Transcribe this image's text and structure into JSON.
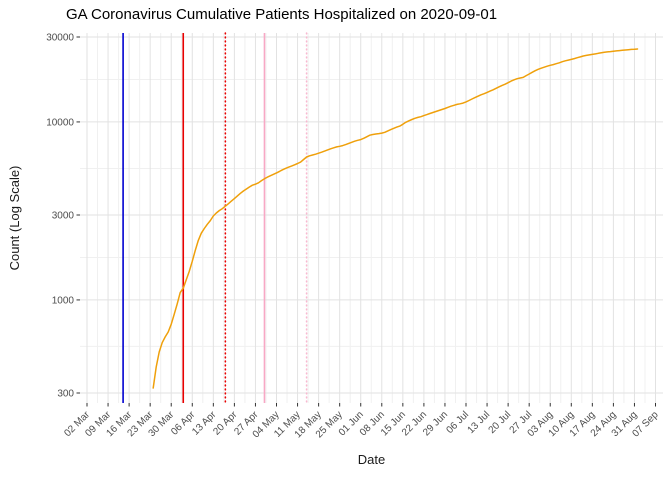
{
  "chart_data": {
    "type": "line",
    "title": "GA Coronavirus Cumulative Patients Hospitalized on 2020-09-01",
    "xlabel": "Date",
    "ylabel": "Count (Log Scale)",
    "y_scale": "log10",
    "grid": true,
    "legend": false,
    "x_start_date": "2020-03-02",
    "x_tick_interval_days": 7,
    "x_tick_labels": [
      "02 Mar",
      "09 Mar",
      "16 Mar",
      "23 Mar",
      "30 Mar",
      "06 Apr",
      "13 Apr",
      "20 Apr",
      "27 Apr",
      "04 May",
      "11 May",
      "18 May",
      "25 May",
      "01 Jun",
      "08 Jun",
      "15 Jun",
      "22 Jun",
      "29 Jun",
      "06 Jul",
      "13 Jul",
      "20 Jul",
      "27 Jul",
      "03 Aug",
      "10 Aug",
      "17 Aug",
      "24 Aug",
      "31 Aug",
      "07 Sep"
    ],
    "y_ticks": [
      300,
      1000,
      3000,
      10000,
      30000
    ],
    "y_tick_labels": [
      "300",
      "1000",
      "3000",
      "10000",
      "30000"
    ],
    "y_minor_gridlines": [
      548,
      1732,
      5477,
      17321
    ],
    "ylim": [
      260,
      33000
    ],
    "colors": {
      "series": "#EFA00B",
      "grid_major": "#E2E2E2",
      "grid_minor": "#F0F0F0",
      "tick_mark": "#333333"
    },
    "reference_lines": [
      {
        "date": "2020-03-14",
        "color": "#0000D0",
        "style": "solid"
      },
      {
        "date": "2020-04-03",
        "color": "#E80000",
        "style": "solid"
      },
      {
        "date": "2020-04-17",
        "color": "#E80000",
        "style": "dotted"
      },
      {
        "date": "2020-04-30",
        "color": "#F8A8C5",
        "style": "solid"
      },
      {
        "date": "2020-05-14",
        "color": "#F8B9D0",
        "style": "dotted"
      }
    ],
    "series": [
      {
        "name": "cumulative-patients-hospitalized",
        "color": "#EFA00B",
        "points": [
          [
            "2020-03-24",
            320
          ],
          [
            "2020-03-25",
            420
          ],
          [
            "2020-03-26",
            510
          ],
          [
            "2020-03-27",
            575
          ],
          [
            "2020-03-28",
            620
          ],
          [
            "2020-03-29",
            660
          ],
          [
            "2020-03-30",
            730
          ],
          [
            "2020-03-31",
            830
          ],
          [
            "2020-04-01",
            950
          ],
          [
            "2020-04-02",
            1100
          ],
          [
            "2020-04-03",
            1165
          ],
          [
            "2020-04-04",
            1300
          ],
          [
            "2020-04-05",
            1450
          ],
          [
            "2020-04-06",
            1650
          ],
          [
            "2020-04-07",
            1900
          ],
          [
            "2020-04-08",
            2160
          ],
          [
            "2020-04-09",
            2370
          ],
          [
            "2020-04-10",
            2520
          ],
          [
            "2020-04-11",
            2660
          ],
          [
            "2020-04-12",
            2790
          ],
          [
            "2020-04-13",
            2960
          ],
          [
            "2020-04-14",
            3080
          ],
          [
            "2020-04-15",
            3180
          ],
          [
            "2020-04-16",
            3260
          ],
          [
            "2020-04-17",
            3360
          ],
          [
            "2020-04-18",
            3470
          ],
          [
            "2020-04-19",
            3590
          ],
          [
            "2020-04-20",
            3710
          ],
          [
            "2020-04-21",
            3840
          ],
          [
            "2020-04-22",
            3970
          ],
          [
            "2020-04-23",
            4090
          ],
          [
            "2020-04-24",
            4200
          ],
          [
            "2020-04-25",
            4310
          ],
          [
            "2020-04-26",
            4410
          ],
          [
            "2020-04-27",
            4470
          ],
          [
            "2020-04-28",
            4550
          ],
          [
            "2020-04-29",
            4680
          ],
          [
            "2020-04-30",
            4800
          ],
          [
            "2020-05-01",
            4900
          ],
          [
            "2020-05-02",
            4990
          ],
          [
            "2020-05-03",
            5080
          ],
          [
            "2020-05-04",
            5170
          ],
          [
            "2020-05-05",
            5270
          ],
          [
            "2020-05-06",
            5380
          ],
          [
            "2020-05-07",
            5480
          ],
          [
            "2020-05-08",
            5570
          ],
          [
            "2020-05-09",
            5650
          ],
          [
            "2020-05-10",
            5740
          ],
          [
            "2020-05-11",
            5840
          ],
          [
            "2020-05-12",
            5950
          ],
          [
            "2020-05-13",
            6150
          ],
          [
            "2020-05-14",
            6350
          ],
          [
            "2020-05-15",
            6450
          ],
          [
            "2020-05-16",
            6520
          ],
          [
            "2020-05-17",
            6590
          ],
          [
            "2020-05-18",
            6670
          ],
          [
            "2020-05-19",
            6760
          ],
          [
            "2020-05-20",
            6860
          ],
          [
            "2020-05-21",
            6960
          ],
          [
            "2020-05-22",
            7060
          ],
          [
            "2020-05-23",
            7160
          ],
          [
            "2020-05-24",
            7240
          ],
          [
            "2020-05-25",
            7300
          ],
          [
            "2020-05-26",
            7360
          ],
          [
            "2020-05-27",
            7460
          ],
          [
            "2020-05-28",
            7570
          ],
          [
            "2020-05-29",
            7680
          ],
          [
            "2020-05-30",
            7790
          ],
          [
            "2020-05-31",
            7880
          ],
          [
            "2020-06-01",
            7960
          ],
          [
            "2020-06-02",
            8090
          ],
          [
            "2020-06-03",
            8250
          ],
          [
            "2020-06-04",
            8420
          ],
          [
            "2020-06-05",
            8500
          ],
          [
            "2020-06-06",
            8550
          ],
          [
            "2020-06-07",
            8600
          ],
          [
            "2020-06-08",
            8650
          ],
          [
            "2020-06-09",
            8750
          ],
          [
            "2020-06-10",
            8900
          ],
          [
            "2020-06-11",
            9060
          ],
          [
            "2020-06-12",
            9210
          ],
          [
            "2020-06-13",
            9350
          ],
          [
            "2020-06-14",
            9480
          ],
          [
            "2020-06-15",
            9700
          ],
          [
            "2020-06-16",
            9950
          ],
          [
            "2020-06-17",
            10150
          ],
          [
            "2020-06-18",
            10320
          ],
          [
            "2020-06-19",
            10480
          ],
          [
            "2020-06-20",
            10600
          ],
          [
            "2020-06-21",
            10700
          ],
          [
            "2020-06-22",
            10850
          ],
          [
            "2020-06-23",
            11000
          ],
          [
            "2020-06-24",
            11150
          ],
          [
            "2020-06-25",
            11300
          ],
          [
            "2020-06-26",
            11450
          ],
          [
            "2020-06-27",
            11600
          ],
          [
            "2020-06-28",
            11750
          ],
          [
            "2020-06-29",
            11900
          ],
          [
            "2020-06-30",
            12080
          ],
          [
            "2020-07-01",
            12250
          ],
          [
            "2020-07-02",
            12400
          ],
          [
            "2020-07-03",
            12550
          ],
          [
            "2020-07-04",
            12650
          ],
          [
            "2020-07-05",
            12750
          ],
          [
            "2020-07-06",
            12950
          ],
          [
            "2020-07-07",
            13200
          ],
          [
            "2020-07-08",
            13450
          ],
          [
            "2020-07-09",
            13700
          ],
          [
            "2020-07-10",
            13950
          ],
          [
            "2020-07-11",
            14200
          ],
          [
            "2020-07-12",
            14400
          ],
          [
            "2020-07-13",
            14650
          ],
          [
            "2020-07-14",
            14900
          ],
          [
            "2020-07-15",
            15150
          ],
          [
            "2020-07-16",
            15450
          ],
          [
            "2020-07-17",
            15750
          ],
          [
            "2020-07-18",
            16050
          ],
          [
            "2020-07-19",
            16300
          ],
          [
            "2020-07-20",
            16600
          ],
          [
            "2020-07-21",
            16950
          ],
          [
            "2020-07-22",
            17250
          ],
          [
            "2020-07-23",
            17500
          ],
          [
            "2020-07-24",
            17650
          ],
          [
            "2020-07-25",
            17800
          ],
          [
            "2020-07-26",
            18200
          ],
          [
            "2020-07-27",
            18600
          ],
          [
            "2020-07-28",
            19000
          ],
          [
            "2020-07-29",
            19400
          ],
          [
            "2020-07-30",
            19750
          ],
          [
            "2020-07-31",
            20050
          ],
          [
            "2020-08-01",
            20300
          ],
          [
            "2020-08-02",
            20550
          ],
          [
            "2020-08-03",
            20800
          ],
          [
            "2020-08-04",
            21000
          ],
          [
            "2020-08-05",
            21250
          ],
          [
            "2020-08-06",
            21500
          ],
          [
            "2020-08-07",
            21800
          ],
          [
            "2020-08-08",
            22050
          ],
          [
            "2020-08-09",
            22250
          ],
          [
            "2020-08-10",
            22450
          ],
          [
            "2020-08-11",
            22700
          ],
          [
            "2020-08-12",
            22950
          ],
          [
            "2020-08-13",
            23200
          ],
          [
            "2020-08-14",
            23450
          ],
          [
            "2020-08-15",
            23650
          ],
          [
            "2020-08-16",
            23800
          ],
          [
            "2020-08-17",
            23950
          ],
          [
            "2020-08-18",
            24100
          ],
          [
            "2020-08-19",
            24300
          ],
          [
            "2020-08-20",
            24450
          ],
          [
            "2020-08-21",
            24600
          ],
          [
            "2020-08-22",
            24750
          ],
          [
            "2020-08-23",
            24850
          ],
          [
            "2020-08-24",
            24950
          ],
          [
            "2020-08-25",
            25050
          ],
          [
            "2020-08-26",
            25150
          ],
          [
            "2020-08-27",
            25250
          ],
          [
            "2020-08-28",
            25350
          ],
          [
            "2020-08-29",
            25450
          ],
          [
            "2020-08-30",
            25550
          ],
          [
            "2020-08-31",
            25600
          ],
          [
            "2020-09-01",
            25700
          ]
        ]
      }
    ]
  }
}
